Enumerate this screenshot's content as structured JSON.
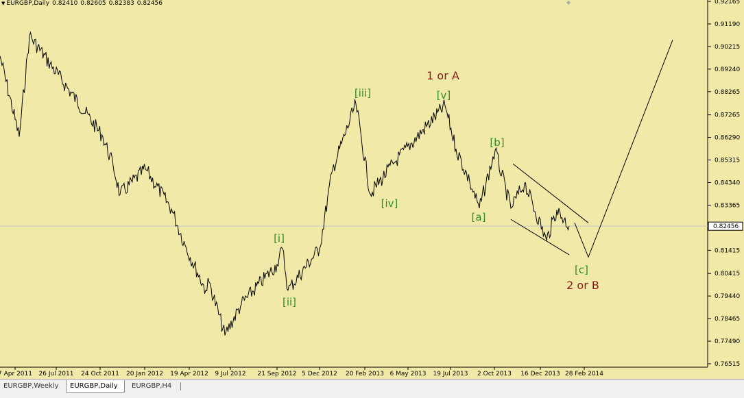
{
  "header": {
    "symbol": "EURGBP,Daily",
    "ohlc": [
      "0.82410",
      "0.82605",
      "0.82383",
      "0.82456"
    ]
  },
  "tabs": [
    {
      "label": "EURGBP,Weekly",
      "active": false
    },
    {
      "label": "EURGBP,Daily",
      "active": true
    },
    {
      "label": "EURGBP,H4",
      "active": false
    }
  ],
  "colors": {
    "background": "#f0e9a8",
    "price_line": "#000000",
    "wave_green": "#2e8b2e",
    "wave_red": "#8b1a1a",
    "current_price_line": "#c8c8c8"
  },
  "chart_data": {
    "type": "line",
    "price_axis": {
      "ticks": [
        "0.92165",
        "0.91190",
        "0.90215",
        "0.89240",
        "0.88265",
        "0.87265",
        "0.86290",
        "0.85315",
        "0.84340",
        "0.83365",
        "0.82456",
        "0.81415",
        "0.80415",
        "0.79440",
        "0.78465",
        "0.77490",
        "0.76515"
      ],
      "current_price": "0.82456",
      "ylim": [
        0.76515,
        0.92165
      ]
    },
    "time_axis": {
      "ticks": [
        "7 Apr 2011",
        "26 Jul 2011",
        "24 Oct 2011",
        "20 Jan 2012",
        "19 Apr 2012",
        "9 Jul 2012",
        "21 Sep 2012",
        "5 Dec 2012",
        "20 Feb 2013",
        "6 May 2013",
        "19 Jul 2013",
        "2 Oct 2013",
        "16 Dec 2013",
        "28 Feb 2014"
      ]
    },
    "series": [
      {
        "x": [
          "7 Apr 2011",
          "Jun 2011",
          "26 Jul 2011",
          "24 Oct 2011",
          "Nov 2011",
          "Dec 2011",
          "20 Jan 2012",
          "Mar 2012",
          "19 Apr 2012",
          "May 2012",
          "Jun 2012",
          "9 Jul 2012",
          "Aug 2012",
          "21 Sep 2012",
          "Oct 2012",
          "Oct 2012",
          "5 Dec 2012",
          "Jan 2013",
          "20 Feb 2013",
          "Apr 2013",
          "6 May 2013",
          "19 Jul 2013",
          "Aug 2013",
          "Sep 2013",
          "Sep 2013",
          "2 Oct 2013",
          "Oct 2013",
          "Nov 2013",
          "16 Dec 2013",
          "Jan 2014",
          "28 Feb 2014"
        ],
        "values": [
          0.8981,
          0.8632,
          0.9068,
          0.8632,
          0.8507,
          0.8382,
          0.8493,
          0.832,
          0.8163,
          0.7969,
          0.8004,
          0.7774,
          0.7909,
          0.808,
          0.8149,
          0.7969,
          0.815,
          0.849,
          0.8774,
          0.8385,
          0.852,
          0.8766,
          0.858,
          0.8437,
          0.8323,
          0.8573,
          0.8323,
          0.8432,
          0.8184,
          0.8316,
          0.8246
        ]
      }
    ],
    "annotations": [
      {
        "text": "[i]",
        "color": "green",
        "x": "21 Sep 2012"
      },
      {
        "text": "[ii]",
        "color": "green",
        "x": "Oct 2012"
      },
      {
        "text": "[iii]",
        "color": "green",
        "x": "20 Feb 2013"
      },
      {
        "text": "[iv]",
        "color": "green",
        "x": "6 May 2013"
      },
      {
        "text": "[v]",
        "color": "green",
        "x": "19 Jul 2013"
      },
      {
        "text": "1 or A",
        "color": "red",
        "x": "19 Jul 2013"
      },
      {
        "text": "[a]",
        "color": "green",
        "x": "Sep 2013"
      },
      {
        "text": "[b]",
        "color": "green",
        "x": "2 Oct 2013"
      },
      {
        "text": "[c]",
        "color": "green",
        "x": "Mar 2014"
      },
      {
        "text": "2 or B",
        "color": "red",
        "x": "Mar 2014"
      }
    ],
    "drawn_lines": [
      {
        "name": "channel-upper",
        "from": [
          "Oct 2013",
          0.8515
        ],
        "to": [
          "Feb 2014",
          0.826
        ]
      },
      {
        "name": "channel-lower",
        "from": [
          "Oct 2013",
          0.8275
        ],
        "to": [
          "Feb 2014",
          0.8122
        ]
      },
      {
        "name": "projection",
        "points": [
          [
            "28 Feb 2014",
            0.826
          ],
          [
            "Mar 2014",
            0.8112
          ],
          [
            "Jan 2015",
            0.905
          ]
        ]
      }
    ]
  }
}
